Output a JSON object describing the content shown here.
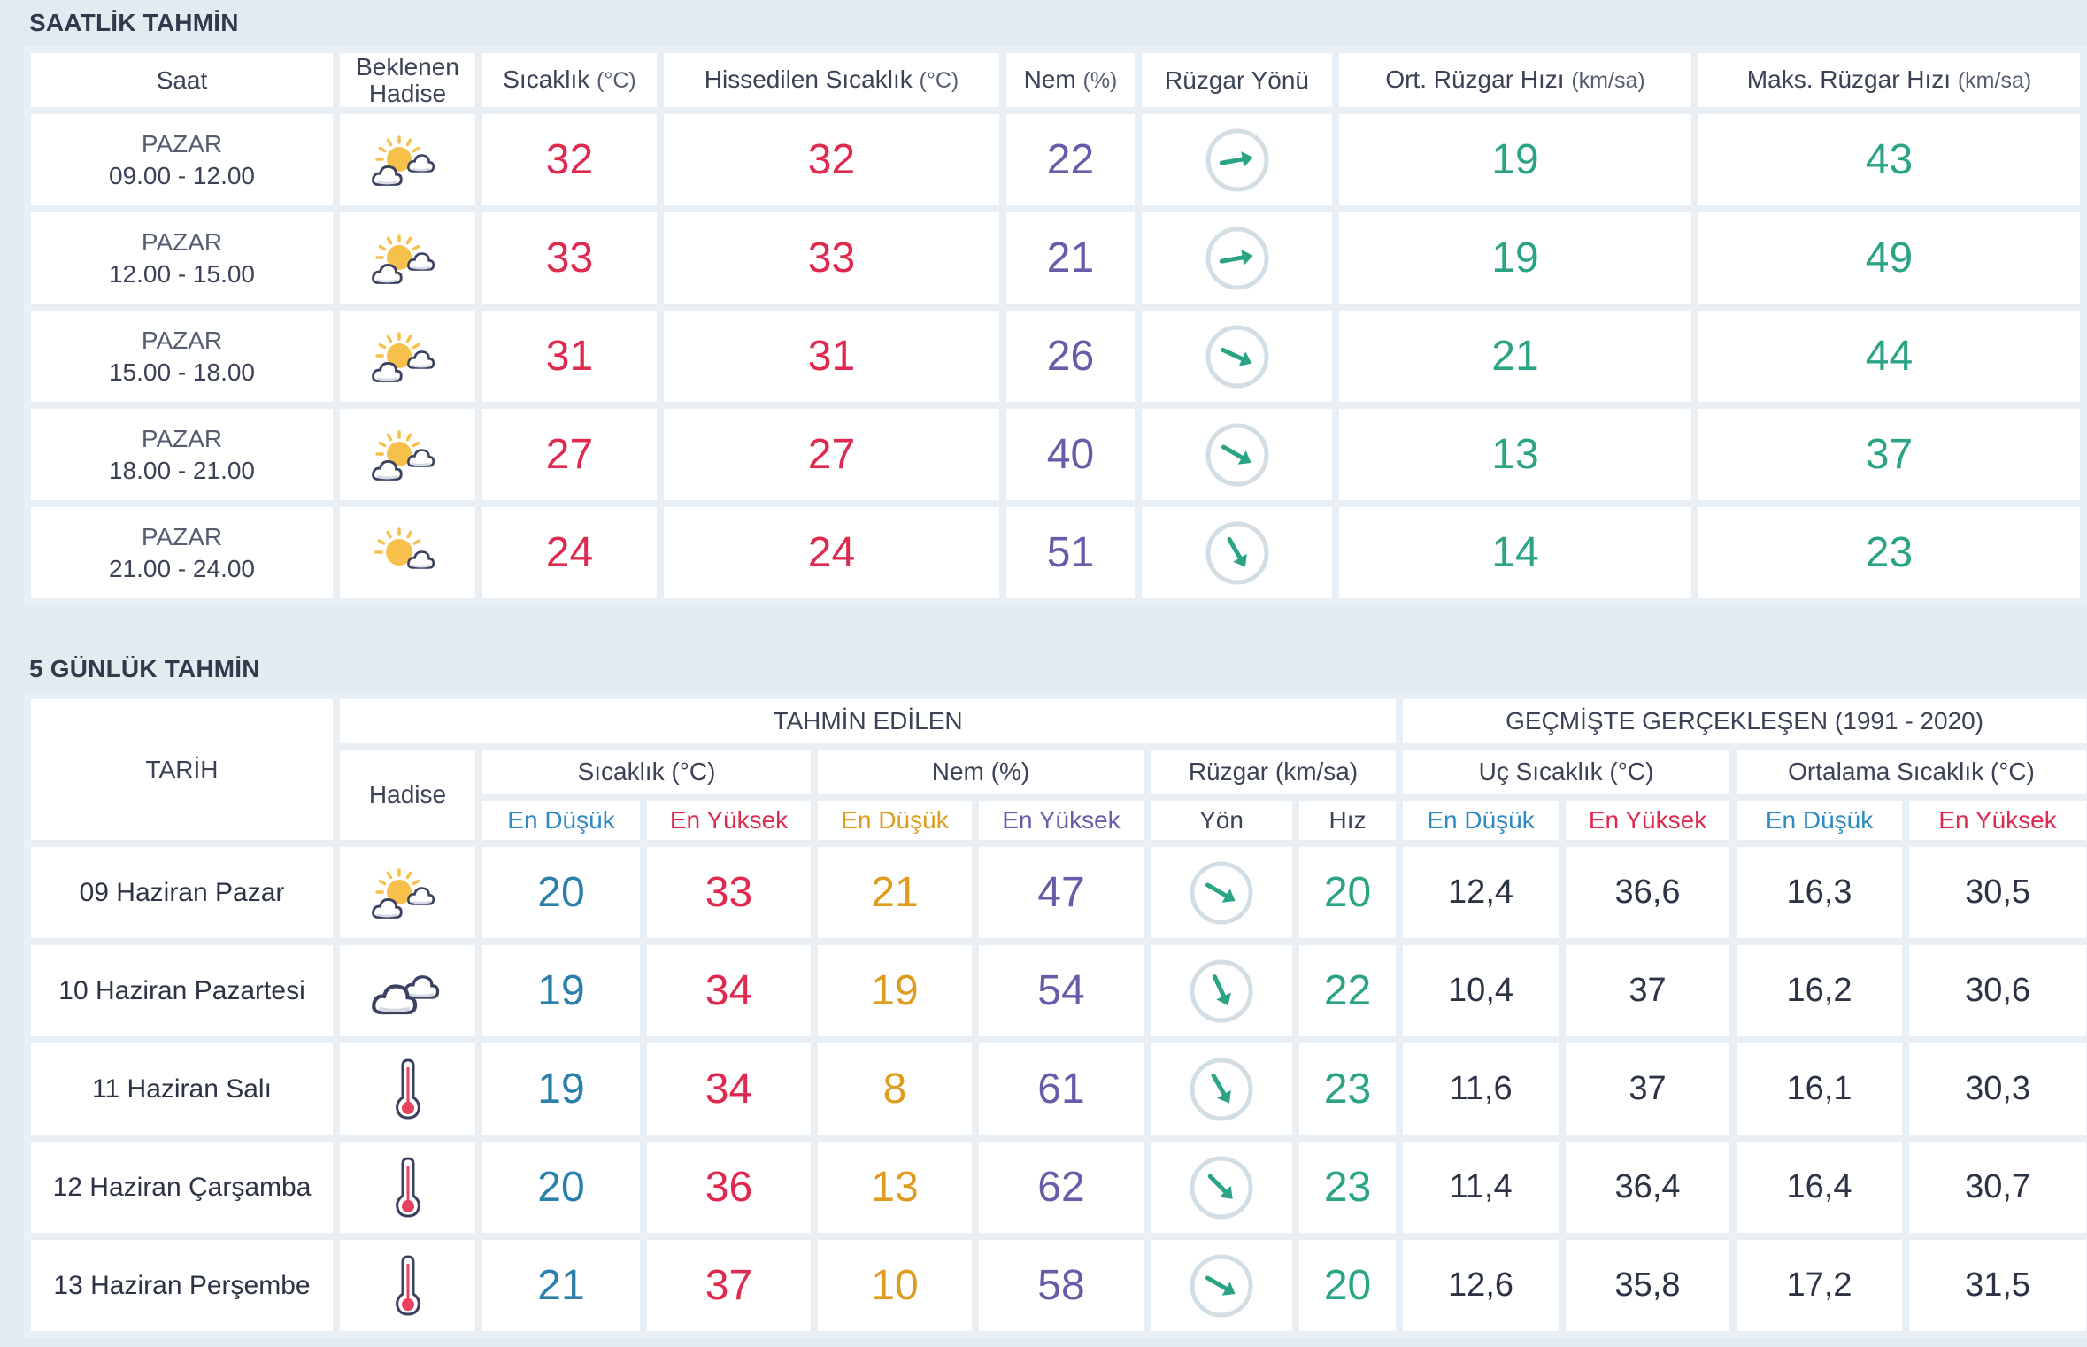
{
  "hourly": {
    "title": "SAATLİK TAHMİN",
    "headers": {
      "saat": "Saat",
      "hadise_1": "Beklenen",
      "hadise_2": "Hadise",
      "sicaklik": "Sıcaklık",
      "sicaklik_unit": "(°C)",
      "hissedilen": "Hissedilen Sıcaklık",
      "hissedilen_unit": "(°C)",
      "nem": "Nem",
      "nem_unit": "(%)",
      "ruzgar_yonu": "Rüzgar Yönü",
      "ort_ruzgar": "Ort. Rüzgar Hızı",
      "ort_ruzgar_unit": "(km/sa)",
      "maks_ruzgar": "Maks. Rüzgar Hızı",
      "maks_ruzgar_unit": "(km/sa)"
    },
    "rows": [
      {
        "day": "PAZAR",
        "time": "09.00 - 12.00",
        "icon": "partly-cloudy",
        "temp": "32",
        "feels": "32",
        "humidity": "22",
        "wind_dir_deg": -10,
        "wind_avg": "19",
        "wind_max": "43"
      },
      {
        "day": "PAZAR",
        "time": "12.00 - 15.00",
        "icon": "partly-cloudy",
        "temp": "33",
        "feels": "33",
        "humidity": "21",
        "wind_dir_deg": -10,
        "wind_avg": "19",
        "wind_max": "49"
      },
      {
        "day": "PAZAR",
        "time": "15.00 - 18.00",
        "icon": "partly-cloudy",
        "temp": "31",
        "feels": "31",
        "humidity": "26",
        "wind_dir_deg": 25,
        "wind_avg": "21",
        "wind_max": "44"
      },
      {
        "day": "PAZAR",
        "time": "18.00 - 21.00",
        "icon": "partly-cloudy",
        "temp": "27",
        "feels": "27",
        "humidity": "40",
        "wind_dir_deg": 30,
        "wind_avg": "13",
        "wind_max": "37"
      },
      {
        "day": "PAZAR",
        "time": "21.00 - 24.00",
        "icon": "mostly-sunny",
        "temp": "24",
        "feels": "24",
        "humidity": "51",
        "wind_dir_deg": 60,
        "wind_avg": "14",
        "wind_max": "23"
      }
    ]
  },
  "daily": {
    "title": "5 GÜNLÜK TAHMİN",
    "headers": {
      "tarih": "TARİH",
      "tahmin_edilen": "TAHMİN EDİLEN",
      "gecmiste": "GEÇMİŞTE GERÇEKLEŞEN (1991 - 2020)",
      "hadise": "Hadise",
      "sicaklik": "Sıcaklık (°C)",
      "nem": "Nem (%)",
      "ruzgar": "Rüzgar (km/sa)",
      "uc_sicaklik": "Uç Sıcaklık (°C)",
      "ort_sicaklik": "Ortalama Sıcaklık (°C)",
      "en_dusuk": "En Düşük",
      "en_yuksek": "En Yüksek",
      "yon": "Yön",
      "hiz": "Hız"
    },
    "rows": [
      {
        "date": "09 Haziran Pazar",
        "icon": "partly-cloudy",
        "temp_min": "20",
        "temp_max": "33",
        "hum_min": "21",
        "hum_max": "47",
        "wind_dir_deg": 30,
        "wind_speed": "20",
        "extreme_min": "12,4",
        "extreme_max": "36,6",
        "avg_min": "16,3",
        "avg_max": "30,5"
      },
      {
        "date": "10 Haziran Pazartesi",
        "icon": "cloudy",
        "temp_min": "19",
        "temp_max": "34",
        "hum_min": "19",
        "hum_max": "54",
        "wind_dir_deg": 65,
        "wind_speed": "22",
        "extreme_min": "10,4",
        "extreme_max": "37",
        "avg_min": "16,2",
        "avg_max": "30,6"
      },
      {
        "date": "11 Haziran Salı",
        "icon": "hot",
        "temp_min": "19",
        "temp_max": "34",
        "hum_min": "8",
        "hum_max": "61",
        "wind_dir_deg": 60,
        "wind_speed": "23",
        "extreme_min": "11,6",
        "extreme_max": "37",
        "avg_min": "16,1",
        "avg_max": "30,3"
      },
      {
        "date": "12 Haziran Çarşamba",
        "icon": "hot",
        "temp_min": "20",
        "temp_max": "36",
        "hum_min": "13",
        "hum_max": "62",
        "wind_dir_deg": 45,
        "wind_speed": "23",
        "extreme_min": "11,4",
        "extreme_max": "36,4",
        "avg_min": "16,4",
        "avg_max": "30,7"
      },
      {
        "date": "13 Haziran Perşembe",
        "icon": "hot",
        "temp_min": "21",
        "temp_max": "37",
        "hum_min": "10",
        "hum_max": "58",
        "wind_dir_deg": 30,
        "wind_speed": "20",
        "extreme_min": "12,6",
        "extreme_max": "35,8",
        "avg_min": "17,2",
        "avg_max": "31,5"
      }
    ]
  }
}
